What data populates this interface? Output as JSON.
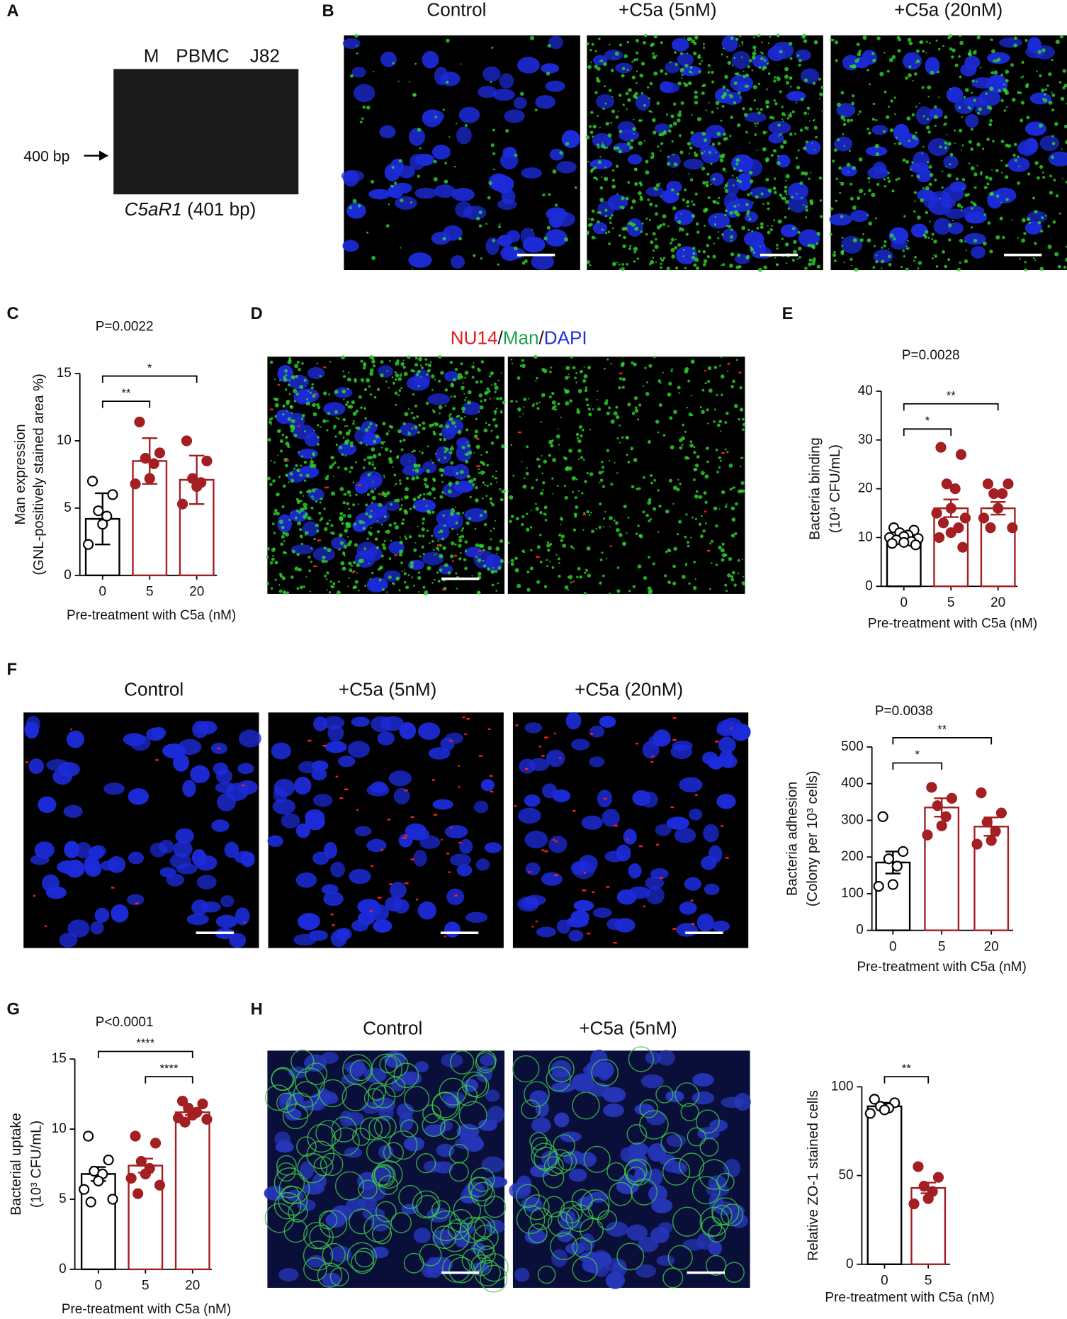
{
  "panel_letters": [
    "A",
    "B",
    "C",
    "D",
    "E",
    "F",
    "G",
    "H"
  ],
  "gel": {
    "lanes": [
      "M",
      "PBMC",
      "J82"
    ],
    "marker": "400 bp",
    "gene": "C5aR1",
    "size": "(401 bp)"
  },
  "panel_b": {
    "headers": [
      "Control",
      "+C5a (5nM)",
      "+C5a (20nM)"
    ]
  },
  "panel_d": {
    "legend": [
      "NU14",
      "/",
      "Man",
      "/",
      "DAPI"
    ]
  },
  "panel_f": {
    "headers": [
      "Control",
      "+C5a (5nM)",
      "+C5a (20nM)"
    ]
  },
  "panel_h": {
    "headers": [
      "Control",
      "+C5a (5nM)"
    ]
  },
  "chart_data": [
    {
      "type": "bar",
      "title": "P=0.0022",
      "y_label": [
        "Man expression",
        "(GNL-positively stained area %)"
      ],
      "x_label": "Pre-treatment with C5a (nM)",
      "categories": [
        "0",
        "5",
        "20"
      ],
      "values": [
        4.2,
        8.5,
        7.1
      ],
      "errors": [
        1.9,
        1.7,
        1.8
      ],
      "points": [
        [
          7.0,
          6.0,
          4.8,
          4.4,
          3.8,
          2.3
        ],
        [
          11.4,
          9.1,
          8.7,
          8.3,
          7.2,
          6.8
        ],
        [
          10.0,
          8.5,
          7.2,
          6.9,
          6.6,
          5.3
        ]
      ],
      "colors": [
        "#000000",
        "#a31f22",
        "#a31f22"
      ],
      "point_style": [
        "open",
        "filled",
        "filled"
      ],
      "ylim": [
        0,
        15
      ],
      "yticks": [
        0,
        5,
        10,
        15
      ],
      "significance": [
        {
          "from": "0",
          "to": "5",
          "label": "**"
        },
        {
          "from": "0",
          "to": "20",
          "label": "*"
        }
      ]
    },
    {
      "type": "bar",
      "title": "P=0.0028",
      "y_label": [
        "Bacteria binding",
        "(10⁴ CFU/mL)"
      ],
      "x_label": "Pre-treatment with C5a (nM)",
      "categories": [
        "0",
        "5",
        "20"
      ],
      "values": [
        10,
        16,
        16
      ],
      "errors": [
        0.6,
        1.8,
        1.3
      ],
      "points": [
        [
          12,
          11.5,
          11,
          10.5,
          10.2,
          10,
          9.8,
          9.5,
          9.2,
          9,
          8.8,
          8.5
        ],
        [
          28.5,
          27,
          21,
          20,
          16,
          15,
          14,
          13,
          12,
          11,
          10,
          8
        ],
        [
          21,
          21,
          19,
          19,
          16,
          14,
          12,
          12
        ]
      ],
      "colors": [
        "#000000",
        "#a31f22",
        "#a31f22"
      ],
      "point_style": [
        "open",
        "filled",
        "filled"
      ],
      "ylim": [
        0,
        40
      ],
      "yticks": [
        0,
        10,
        20,
        30,
        40
      ],
      "significance": [
        {
          "from": "0",
          "to": "5",
          "label": "*"
        },
        {
          "from": "0",
          "to": "20",
          "label": "**"
        }
      ]
    },
    {
      "type": "bar",
      "title": "P=0.0038",
      "y_label": [
        "Bacteria adhesion",
        "(Colony per 10³ cells)"
      ],
      "x_label": "Pre-treatment with C5a (nM)",
      "categories": [
        "0",
        "5",
        "20"
      ],
      "values": [
        185,
        335,
        283
      ],
      "errors": [
        30,
        25,
        25
      ],
      "points": [
        [
          310,
          215,
          195,
          175,
          125,
          120
        ],
        [
          390,
          360,
          340,
          310,
          285,
          260
        ],
        [
          375,
          320,
          295,
          270,
          245,
          235
        ]
      ],
      "colors": [
        "#000000",
        "#a31f22",
        "#a31f22"
      ],
      "point_style": [
        "open",
        "filled",
        "filled"
      ],
      "ylim": [
        0,
        500
      ],
      "yticks": [
        0,
        100,
        200,
        300,
        400,
        500
      ],
      "significance": [
        {
          "from": "0",
          "to": "5",
          "label": "*"
        },
        {
          "from": "0",
          "to": "20",
          "label": "**"
        }
      ]
    },
    {
      "type": "bar",
      "title": "P<0.0001",
      "y_label": [
        "Bacterial uptake",
        "(10³ CFU/mL)"
      ],
      "x_label": "Pre-treatment with C5a (nM)",
      "categories": [
        "0",
        "5",
        "20"
      ],
      "values": [
        6.8,
        7.4,
        11.2
      ],
      "errors": [
        0.5,
        0.5,
        0.2
      ],
      "points": [
        [
          9.5,
          7.8,
          7.0,
          6.8,
          6.3,
          5.7,
          5.0,
          4.8
        ],
        [
          9.5,
          9.0,
          7.7,
          7.2,
          6.8,
          6.5,
          6.0,
          5.4
        ],
        [
          12.0,
          11.8,
          11.5,
          11.2,
          11.0,
          10.8,
          10.7,
          10.5
        ]
      ],
      "colors": [
        "#000000",
        "#a31f22",
        "#a31f22"
      ],
      "point_style": [
        "open",
        "filled",
        "filled"
      ],
      "ylim": [
        0,
        15
      ],
      "yticks": [
        0,
        5,
        10,
        15
      ],
      "significance": [
        {
          "from": "5",
          "to": "20",
          "label": "****"
        },
        {
          "from": "0",
          "to": "20",
          "label": "****"
        }
      ]
    },
    {
      "type": "bar",
      "y_label": [
        "Relative ZO-1 stained cells"
      ],
      "x_label": "Pre-treatment with C5a (nM)",
      "categories": [
        "0",
        "5"
      ],
      "values": [
        89,
        43
      ],
      "errors": [
        2,
        3
      ],
      "points": [
        [
          93,
          91,
          89,
          88,
          87,
          85
        ],
        [
          55,
          49,
          44,
          41,
          37,
          34
        ]
      ],
      "colors": [
        "#000000",
        "#a31f22"
      ],
      "point_style": [
        "open",
        "filled"
      ],
      "ylim": [
        0,
        100
      ],
      "yticks": [
        0,
        50,
        100
      ],
      "significance": [
        {
          "from": "0",
          "to": "5",
          "label": "**"
        }
      ]
    }
  ]
}
